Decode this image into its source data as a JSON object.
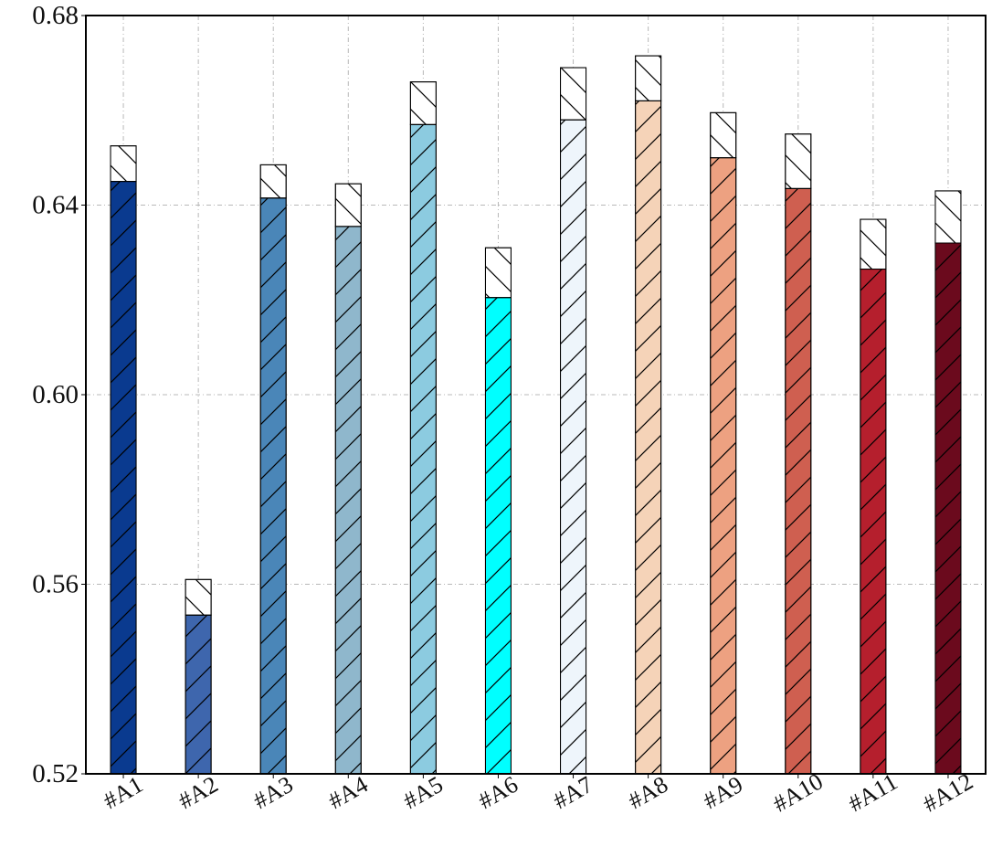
{
  "chart_data": {
    "type": "bar",
    "title": "",
    "xlabel": "",
    "ylabel": "",
    "ylim": [
      0.52,
      0.68
    ],
    "yticks": [
      0.52,
      0.56,
      0.6,
      0.64,
      0.68
    ],
    "ytick_labels": [
      "0.52",
      "0.56",
      "0.60",
      "0.64",
      "0.68"
    ],
    "grid": true,
    "categories": [
      "#A1",
      "#A2",
      "#A3",
      "#A4",
      "#A5",
      "#A6",
      "#A7",
      "#A8",
      "#A9",
      "#A10",
      "#A11",
      "#A12"
    ],
    "series": [
      {
        "values": [
          0.645,
          0.5535,
          0.6415,
          0.6355,
          0.657,
          0.6205,
          0.658,
          0.662,
          0.65,
          0.6435,
          0.6265,
          0.632
        ]
      },
      {
        "values": [
          0.0075,
          0.0075,
          0.007,
          0.009,
          0.009,
          0.0105,
          0.011,
          0.0095,
          0.0095,
          0.0115,
          0.0105,
          0.011
        ]
      }
    ],
    "colors": [
      "#0a3a8f",
      "#3e66ad",
      "#4a86b8",
      "#8fb7cc",
      "#8ccbe0",
      "#00ffff",
      "#eef5fb",
      "#f5d3b8",
      "#eda181",
      "#cf5f50",
      "#b51f2d",
      "#6b0a1d"
    ],
    "top_segment_color": "#ffffff",
    "bar_hatch": "/",
    "top_hatch": "\\"
  }
}
